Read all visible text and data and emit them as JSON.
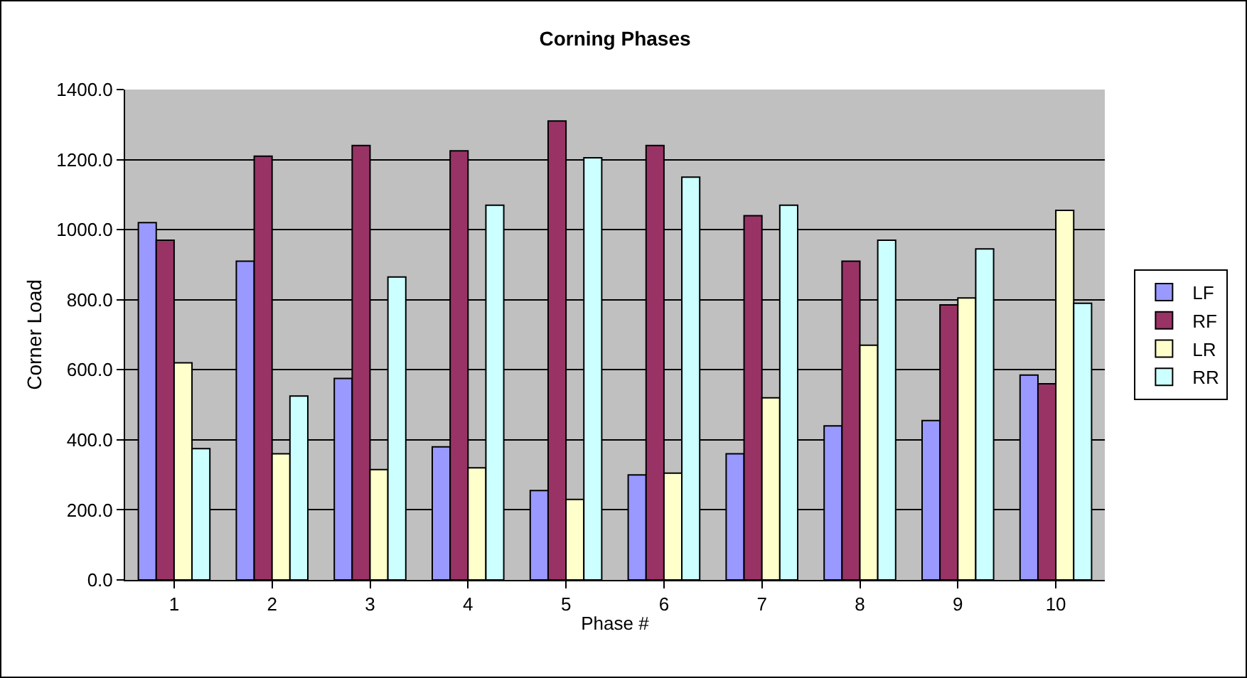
{
  "chart_data": {
    "type": "bar",
    "title": "Corning Phases",
    "xlabel": "Phase #",
    "ylabel": "Corner Load",
    "categories": [
      "1",
      "2",
      "3",
      "4",
      "5",
      "6",
      "7",
      "8",
      "9",
      "10"
    ],
    "series": [
      {
        "name": "LF",
        "color": "#9999ff",
        "values": [
          1020,
          910,
          575,
          380,
          255,
          300,
          360,
          440,
          455,
          585
        ]
      },
      {
        "name": "RF",
        "color": "#993366",
        "values": [
          970,
          1210,
          1240,
          1225,
          1310,
          1240,
          1040,
          910,
          785,
          560
        ]
      },
      {
        "name": "LR",
        "color": "#ffffcc",
        "values": [
          620,
          360,
          315,
          320,
          230,
          305,
          520,
          670,
          805,
          1055
        ]
      },
      {
        "name": "RR",
        "color": "#ccffff",
        "values": [
          375,
          525,
          865,
          1070,
          1205,
          1150,
          1070,
          970,
          945,
          790
        ]
      }
    ],
    "ylim": [
      0,
      1400
    ],
    "yticks": [
      {
        "value": 0,
        "label": "0.0"
      },
      {
        "value": 200,
        "label": "200.0"
      },
      {
        "value": 400,
        "label": "400.0"
      },
      {
        "value": 600,
        "label": "600.0"
      },
      {
        "value": 800,
        "label": "800.0"
      },
      {
        "value": 1000,
        "label": "1000.0"
      },
      {
        "value": 1200,
        "label": "1200.0"
      },
      {
        "value": 1400,
        "label": "1400.0"
      }
    ],
    "grid": "y",
    "legend": "right"
  }
}
